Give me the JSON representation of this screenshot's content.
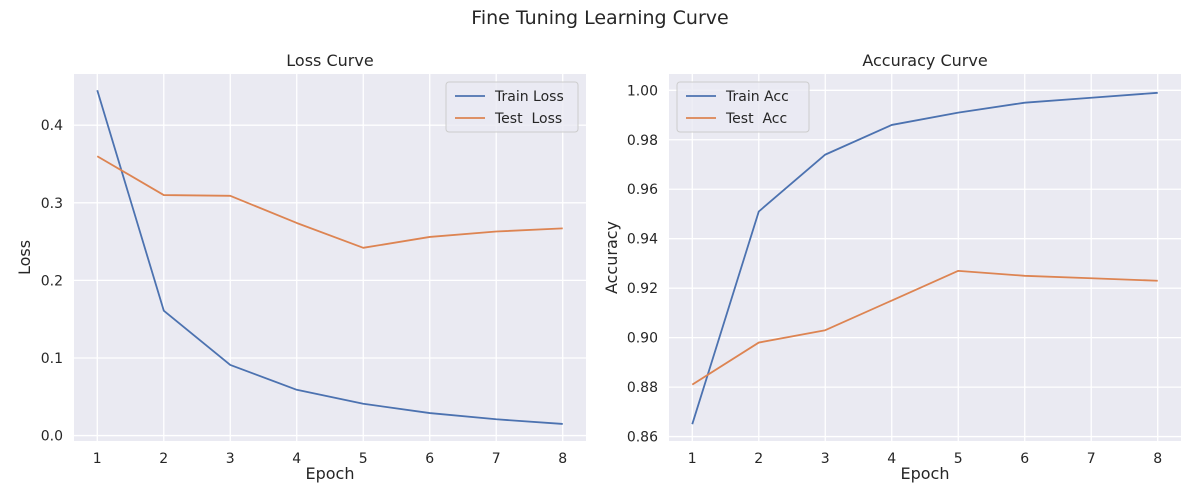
{
  "figure_title": "Fine Tuning Learning Curve",
  "colors": {
    "background": "#eaeaf2",
    "grid": "#ffffff",
    "series_blue": "#4c72b0",
    "series_orange": "#dd8452"
  },
  "chart_data": [
    {
      "type": "line",
      "title": "Loss Curve",
      "xlabel": "Epoch",
      "ylabel": "Loss",
      "x": [
        1,
        2,
        3,
        4,
        5,
        6,
        7,
        8
      ],
      "xticks": [
        1,
        2,
        3,
        4,
        5,
        6,
        7,
        8
      ],
      "xlim": [
        0.65,
        8.35
      ],
      "yticks": [
        "0.0",
        "0.1",
        "0.2",
        "0.3",
        "0.4"
      ],
      "ylim": [
        -0.007,
        0.466
      ],
      "grid": true,
      "legend_position": "top-right",
      "series": [
        {
          "name": "Train Loss",
          "color": "#4c72b0",
          "values": [
            0.445,
            0.161,
            0.091,
            0.059,
            0.041,
            0.029,
            0.021,
            0.015
          ]
        },
        {
          "name": "Test  Loss",
          "color": "#dd8452",
          "values": [
            0.36,
            0.31,
            0.309,
            0.274,
            0.242,
            0.256,
            0.263,
            0.267
          ]
        }
      ]
    },
    {
      "type": "line",
      "title": "Accuracy Curve",
      "xlabel": "Epoch",
      "ylabel": "Accuracy",
      "x": [
        1,
        2,
        3,
        4,
        5,
        6,
        7,
        8
      ],
      "xticks": [
        1,
        2,
        3,
        4,
        5,
        6,
        7,
        8
      ],
      "xlim": [
        0.65,
        8.35
      ],
      "yticks": [
        "0.86",
        "0.88",
        "0.90",
        "0.92",
        "0.94",
        "0.96",
        "0.98",
        "1.00"
      ],
      "ylim": [
        0.8582,
        1.0066
      ],
      "grid": true,
      "legend_position": "top-left",
      "series": [
        {
          "name": "Train Acc",
          "color": "#4c72b0",
          "values": [
            0.865,
            0.951,
            0.974,
            0.986,
            0.991,
            0.995,
            0.997,
            0.999
          ]
        },
        {
          "name": "Test  Acc",
          "color": "#dd8452",
          "values": [
            0.881,
            0.898,
            0.903,
            0.915,
            0.927,
            0.925,
            0.924,
            0.923
          ]
        }
      ]
    }
  ]
}
